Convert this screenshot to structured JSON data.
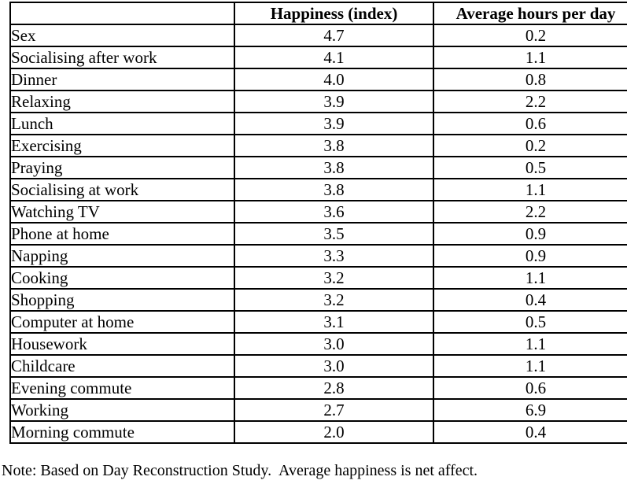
{
  "table": {
    "columns": [
      "",
      "Happiness (index)",
      "Average hours per day"
    ],
    "rows": [
      {
        "activity": "Sex",
        "happiness": "4.7",
        "hours": "0.2"
      },
      {
        "activity": "Socialising after work",
        "happiness": "4.1",
        "hours": "1.1"
      },
      {
        "activity": "Dinner",
        "happiness": "4.0",
        "hours": "0.8"
      },
      {
        "activity": "Relaxing",
        "happiness": "3.9",
        "hours": "2.2"
      },
      {
        "activity": "Lunch",
        "happiness": "3.9",
        "hours": "0.6"
      },
      {
        "activity": "Exercising",
        "happiness": "3.8",
        "hours": "0.2"
      },
      {
        "activity": "Praying",
        "happiness": "3.8",
        "hours": "0.5"
      },
      {
        "activity": "Socialising at work",
        "happiness": "3.8",
        "hours": "1.1"
      },
      {
        "activity": "Watching TV",
        "happiness": "3.6",
        "hours": "2.2"
      },
      {
        "activity": "Phone at home",
        "happiness": "3.5",
        "hours": "0.9"
      },
      {
        "activity": "Napping",
        "happiness": "3.3",
        "hours": "0.9"
      },
      {
        "activity": "Cooking",
        "happiness": "3.2",
        "hours": "1.1"
      },
      {
        "activity": "Shopping",
        "happiness": "3.2",
        "hours": "0.4"
      },
      {
        "activity": "Computer at home",
        "happiness": "3.1",
        "hours": "0.5"
      },
      {
        "activity": "Housework",
        "happiness": "3.0",
        "hours": "1.1"
      },
      {
        "activity": "Childcare",
        "happiness": "3.0",
        "hours": "1.1"
      },
      {
        "activity": "Evening commute",
        "happiness": "2.8",
        "hours": "0.6"
      },
      {
        "activity": "Working",
        "happiness": "2.7",
        "hours": "6.9"
      },
      {
        "activity": "Morning commute",
        "happiness": "2.0",
        "hours": "0.4"
      }
    ]
  },
  "note": {
    "text": "Note: Based on Day Reconstruction Study.  Average happiness is net affect."
  }
}
